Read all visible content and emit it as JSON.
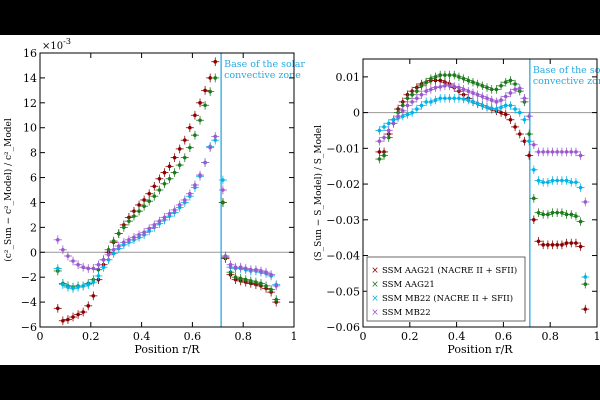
{
  "chart_data": [
    {
      "type": "scatter",
      "ylabel": "(c²_Sun − c²_Model) / c²_Model",
      "xlabel": "Position r/R",
      "y_multiplier": "10",
      "y_exponent": "-3",
      "xlim": [
        0,
        1
      ],
      "ylim": [
        -6,
        16
      ],
      "xticks": [
        0,
        0.2,
        0.4,
        0.6,
        0.8,
        1
      ],
      "xtick_labels": [
        "0",
        "0.2",
        "0.4",
        "0.6",
        "0.8",
        "1"
      ],
      "yticks": [
        -6,
        -4,
        -2,
        0,
        2,
        4,
        6,
        8,
        10,
        12,
        14,
        16
      ],
      "ytick_labels": [
        "−6",
        "−4",
        "−2",
        "0",
        "2",
        "4",
        "6",
        "8",
        "10",
        "12",
        "14",
        "16"
      ],
      "vline_x": 0.713,
      "annotation_lines": [
        "Base of the solar",
        "convective zone"
      ],
      "series": [
        {
          "name": "SSM AAG21 (NACRE II + SFII)",
          "color": "#8b0000",
          "x": [
            0.07,
            0.09,
            0.11,
            0.13,
            0.15,
            0.17,
            0.19,
            0.21,
            0.23,
            0.25,
            0.27,
            0.29,
            0.31,
            0.33,
            0.35,
            0.37,
            0.39,
            0.41,
            0.43,
            0.45,
            0.47,
            0.49,
            0.51,
            0.53,
            0.55,
            0.57,
            0.59,
            0.61,
            0.63,
            0.65,
            0.67,
            0.69,
            0.72,
            0.73,
            0.75,
            0.77,
            0.79,
            0.81,
            0.83,
            0.85,
            0.87,
            0.89,
            0.91,
            0.93
          ],
          "y": [
            -4.5,
            -5.5,
            -5.4,
            -5.2,
            -5.0,
            -4.8,
            -4.3,
            -3.5,
            -2.2,
            -1.0,
            0.0,
            0.8,
            1.5,
            2.2,
            2.8,
            3.3,
            3.8,
            4.2,
            4.7,
            5.3,
            5.9,
            6.4,
            6.9,
            7.6,
            8.3,
            9.0,
            10.0,
            11.0,
            12.0,
            13.0,
            14.0,
            15.3,
            4.0,
            -0.5,
            -1.8,
            -2.2,
            -2.3,
            -2.4,
            -2.5,
            -2.6,
            -2.7,
            -2.9,
            -3.2,
            -4.0
          ]
        },
        {
          "name": "SSM AAG21",
          "color": "#1b7a1b",
          "x": [
            0.07,
            0.09,
            0.11,
            0.13,
            0.15,
            0.17,
            0.19,
            0.21,
            0.23,
            0.25,
            0.27,
            0.29,
            0.31,
            0.33,
            0.35,
            0.37,
            0.39,
            0.41,
            0.43,
            0.45,
            0.47,
            0.49,
            0.51,
            0.53,
            0.55,
            0.57,
            0.59,
            0.61,
            0.63,
            0.65,
            0.67,
            0.69,
            0.72,
            0.73,
            0.75,
            0.77,
            0.79,
            0.81,
            0.83,
            0.85,
            0.87,
            0.89,
            0.91,
            0.93
          ],
          "y": [
            -1.5,
            -2.5,
            -2.7,
            -2.8,
            -2.7,
            -2.7,
            -2.5,
            -2.2,
            -1.4,
            -0.6,
            0.2,
            0.9,
            1.5,
            2.0,
            2.5,
            2.9,
            3.3,
            3.7,
            4.1,
            4.5,
            5.0,
            5.5,
            5.9,
            6.4,
            7.0,
            7.6,
            8.4,
            9.4,
            10.6,
            11.8,
            12.9,
            14.0,
            4.0,
            -0.4,
            -1.6,
            -2.0,
            -2.1,
            -2.2,
            -2.3,
            -2.4,
            -2.5,
            -2.7,
            -3.0,
            -3.8
          ]
        },
        {
          "name": "SSM MB22 (NACRE II + SFII)",
          "color": "#00b4e6",
          "x": [
            0.07,
            0.09,
            0.11,
            0.13,
            0.15,
            0.17,
            0.19,
            0.21,
            0.23,
            0.25,
            0.27,
            0.29,
            0.31,
            0.33,
            0.35,
            0.37,
            0.39,
            0.41,
            0.43,
            0.45,
            0.47,
            0.49,
            0.51,
            0.53,
            0.55,
            0.57,
            0.59,
            0.61,
            0.63,
            0.65,
            0.67,
            0.69,
            0.72,
            0.73,
            0.75,
            0.77,
            0.79,
            0.81,
            0.83,
            0.85,
            0.87,
            0.89,
            0.91,
            0.93
          ],
          "y": [
            -1.3,
            -2.6,
            -2.8,
            -2.9,
            -2.8,
            -2.7,
            -2.6,
            -2.4,
            -1.9,
            -1.2,
            -0.6,
            -0.1,
            0.3,
            0.6,
            0.8,
            1.0,
            1.2,
            1.4,
            1.7,
            2.0,
            2.3,
            2.6,
            2.9,
            3.2,
            3.6,
            4.0,
            4.5,
            5.2,
            6.1,
            7.2,
            8.5,
            9.0,
            5.8,
            -0.3,
            -1.2,
            -1.3,
            -1.3,
            -1.4,
            -1.5,
            -1.5,
            -1.6,
            -1.7,
            -1.9,
            -2.6
          ]
        },
        {
          "name": "SSM MB22",
          "color": "#9b59d0",
          "x": [
            0.07,
            0.09,
            0.11,
            0.13,
            0.15,
            0.17,
            0.19,
            0.21,
            0.23,
            0.25,
            0.27,
            0.29,
            0.31,
            0.33,
            0.35,
            0.37,
            0.39,
            0.41,
            0.43,
            0.45,
            0.47,
            0.49,
            0.51,
            0.53,
            0.55,
            0.57,
            0.59,
            0.61,
            0.63,
            0.65,
            0.67,
            0.69,
            0.72,
            0.73,
            0.75,
            0.77,
            0.79,
            0.81,
            0.83,
            0.85,
            0.87,
            0.89,
            0.91,
            0.93
          ],
          "y": [
            1.0,
            0.2,
            -0.3,
            -0.7,
            -1.0,
            -1.2,
            -1.3,
            -1.3,
            -1.0,
            -0.6,
            -0.2,
            0.2,
            0.5,
            0.8,
            1.0,
            1.2,
            1.4,
            1.6,
            1.9,
            2.2,
            2.5,
            2.8,
            3.1,
            3.4,
            3.8,
            4.2,
            4.7,
            5.4,
            6.2,
            7.2,
            8.4,
            9.3,
            5.0,
            -0.3,
            -1.0,
            -1.2,
            -1.2,
            -1.3,
            -1.4,
            -1.4,
            -1.5,
            -1.6,
            -1.8,
            -2.7
          ]
        }
      ]
    },
    {
      "type": "scatter",
      "ylabel": "(S_Sun − S_Model) / S_Model",
      "xlabel": "Position r/R",
      "xlim": [
        0,
        1
      ],
      "ylim": [
        -0.06,
        0.015
      ],
      "xticks": [
        0,
        0.2,
        0.4,
        0.6,
        0.8,
        1
      ],
      "xtick_labels": [
        "0",
        "0.2",
        "0.4",
        "0.6",
        "0.8",
        "1"
      ],
      "yticks": [
        -0.06,
        -0.05,
        -0.04,
        -0.03,
        -0.02,
        -0.01,
        0,
        0.01
      ],
      "ytick_labels": [
        "−0.06",
        "−0.05",
        "−0.04",
        "−0.03",
        "−0.02",
        "−0.01",
        "0",
        "0.01"
      ],
      "vline_x": 0.713,
      "annotation_lines": [
        "Base of the solar",
        "convective zone"
      ],
      "legend": {
        "location": "lower-left",
        "entries": [
          {
            "label": "SSM AAG21 (NACRE II + SFII)",
            "color": "#8b0000"
          },
          {
            "label": "SSM AAG21",
            "color": "#1b7a1b"
          },
          {
            "label": "SSM MB22 (NACRE II + SFII)",
            "color": "#00b4e6"
          },
          {
            "label": "SSM MB22",
            "color": "#9b59d0"
          }
        ]
      },
      "series": [
        {
          "name": "SSM AAG21 (NACRE II + SFII)",
          "color": "#8b0000",
          "x": [
            0.07,
            0.09,
            0.11,
            0.13,
            0.15,
            0.17,
            0.19,
            0.21,
            0.23,
            0.25,
            0.27,
            0.29,
            0.31,
            0.33,
            0.35,
            0.37,
            0.39,
            0.41,
            0.43,
            0.45,
            0.47,
            0.49,
            0.51,
            0.53,
            0.55,
            0.57,
            0.59,
            0.61,
            0.63,
            0.65,
            0.67,
            0.69,
            0.71,
            0.73,
            0.75,
            0.77,
            0.79,
            0.81,
            0.83,
            0.85,
            0.87,
            0.89,
            0.91,
            0.93,
            0.95
          ],
          "y": [
            -0.011,
            -0.011,
            -0.006,
            -0.002,
            0.001,
            0.003,
            0.005,
            0.006,
            0.007,
            0.008,
            0.0085,
            0.009,
            0.009,
            0.009,
            0.0085,
            0.008,
            0.007,
            0.006,
            0.005,
            0.004,
            0.003,
            0.0025,
            0.002,
            0.0015,
            0.001,
            0.0005,
            0.0,
            -0.0005,
            -0.002,
            -0.004,
            -0.006,
            -0.008,
            -0.012,
            -0.03,
            -0.036,
            -0.037,
            -0.037,
            -0.037,
            -0.037,
            -0.037,
            -0.0365,
            -0.0365,
            -0.0365,
            -0.0375,
            -0.055
          ]
        },
        {
          "name": "SSM AAG21",
          "color": "#1b7a1b",
          "x": [
            0.07,
            0.09,
            0.11,
            0.13,
            0.15,
            0.17,
            0.19,
            0.21,
            0.23,
            0.25,
            0.27,
            0.29,
            0.31,
            0.33,
            0.35,
            0.37,
            0.39,
            0.41,
            0.43,
            0.45,
            0.47,
            0.49,
            0.51,
            0.53,
            0.55,
            0.57,
            0.59,
            0.61,
            0.63,
            0.65,
            0.67,
            0.69,
            0.71,
            0.73,
            0.75,
            0.77,
            0.79,
            0.81,
            0.83,
            0.85,
            0.87,
            0.89,
            0.91,
            0.93,
            0.95
          ],
          "y": [
            -0.013,
            -0.012,
            -0.007,
            -0.003,
            0.0,
            0.002,
            0.004,
            0.005,
            0.006,
            0.0075,
            0.0085,
            0.0095,
            0.01,
            0.0105,
            0.0105,
            0.0105,
            0.0105,
            0.01,
            0.0095,
            0.009,
            0.0085,
            0.008,
            0.0075,
            0.007,
            0.0065,
            0.0065,
            0.0075,
            0.0085,
            0.009,
            0.008,
            0.006,
            0.003,
            -0.006,
            -0.024,
            -0.028,
            -0.0285,
            -0.0285,
            -0.028,
            -0.028,
            -0.028,
            -0.0285,
            -0.0285,
            -0.029,
            -0.0305,
            -0.048
          ]
        },
        {
          "name": "SSM MB22 (NACRE II + SFII)",
          "color": "#00b4e6",
          "x": [
            0.07,
            0.09,
            0.11,
            0.13,
            0.15,
            0.17,
            0.19,
            0.21,
            0.23,
            0.25,
            0.27,
            0.29,
            0.31,
            0.33,
            0.35,
            0.37,
            0.39,
            0.41,
            0.43,
            0.45,
            0.47,
            0.49,
            0.51,
            0.53,
            0.55,
            0.57,
            0.59,
            0.61,
            0.63,
            0.65,
            0.67,
            0.69,
            0.71,
            0.73,
            0.75,
            0.77,
            0.79,
            0.81,
            0.83,
            0.85,
            0.87,
            0.89,
            0.91,
            0.93,
            0.95
          ],
          "y": [
            -0.005,
            -0.004,
            -0.003,
            -0.002,
            -0.0015,
            -0.001,
            -0.0005,
            0.0,
            0.001,
            0.002,
            0.003,
            0.003,
            0.0035,
            0.004,
            0.004,
            0.004,
            0.004,
            0.004,
            0.0038,
            0.0035,
            0.003,
            0.0025,
            0.002,
            0.0015,
            0.0012,
            0.001,
            0.0015,
            0.002,
            0.002,
            0.001,
            0.0,
            -0.002,
            -0.008,
            -0.016,
            -0.019,
            -0.0195,
            -0.0195,
            -0.019,
            -0.019,
            -0.019,
            -0.019,
            -0.0195,
            -0.0195,
            -0.021,
            -0.046
          ]
        },
        {
          "name": "SSM MB22",
          "color": "#9b59d0",
          "x": [
            0.07,
            0.09,
            0.11,
            0.13,
            0.15,
            0.17,
            0.19,
            0.21,
            0.23,
            0.25,
            0.27,
            0.29,
            0.31,
            0.33,
            0.35,
            0.37,
            0.39,
            0.41,
            0.43,
            0.45,
            0.47,
            0.49,
            0.51,
            0.53,
            0.55,
            0.57,
            0.59,
            0.61,
            0.63,
            0.65,
            0.67,
            0.69,
            0.71,
            0.73,
            0.75,
            0.77,
            0.79,
            0.81,
            0.83,
            0.85,
            0.87,
            0.89,
            0.91,
            0.93,
            0.95
          ],
          "y": [
            -0.008,
            -0.007,
            -0.005,
            -0.003,
            -0.001,
            0.0005,
            0.002,
            0.003,
            0.004,
            0.005,
            0.006,
            0.0065,
            0.007,
            0.0072,
            0.0075,
            0.0075,
            0.0073,
            0.007,
            0.0065,
            0.006,
            0.0055,
            0.005,
            0.0045,
            0.004,
            0.0035,
            0.003,
            0.0035,
            0.0045,
            0.0055,
            0.0065,
            0.0068,
            0.004,
            -0.001,
            -0.009,
            -0.011,
            -0.011,
            -0.011,
            -0.011,
            -0.011,
            -0.011,
            -0.011,
            -0.011,
            -0.011,
            -0.012,
            -0.025
          ]
        }
      ]
    }
  ]
}
